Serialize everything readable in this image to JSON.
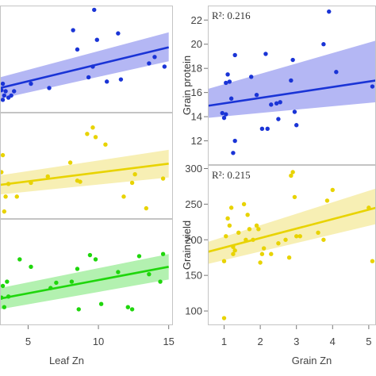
{
  "chart_data": [
    {
      "type": "scatter",
      "panel": "left-top",
      "xlim": [
        3,
        15.3
      ],
      "ylim": [
        0,
        10
      ],
      "grid": false,
      "color": "#1a34d6",
      "band_color": "#a7aaf2",
      "points": [
        [
          3.1,
          2.1
        ],
        [
          3.2,
          2.7
        ],
        [
          3.4,
          2.0
        ],
        [
          3.3,
          1.6
        ],
        [
          3.6,
          1.4
        ],
        [
          3.8,
          1.6
        ],
        [
          3.2,
          1.2
        ],
        [
          4.0,
          2.0
        ],
        [
          5.2,
          2.7
        ],
        [
          6.5,
          2.3
        ],
        [
          8.2,
          7.7
        ],
        [
          8.5,
          5.9
        ],
        [
          9.3,
          3.3
        ],
        [
          9.6,
          4.3
        ],
        [
          9.7,
          9.6
        ],
        [
          9.9,
          6.8
        ],
        [
          10.6,
          2.9
        ],
        [
          11.4,
          7.4
        ],
        [
          11.6,
          3.1
        ],
        [
          13.6,
          4.6
        ],
        [
          14.0,
          5.2
        ],
        [
          14.7,
          4.3
        ]
      ],
      "fit": {
        "x": [
          3,
          15
        ],
        "y": [
          2.3,
          6.1
        ]
      },
      "band": {
        "upper": [
          3.3,
          7.5
        ],
        "lower": [
          1.3,
          4.8
        ]
      }
    },
    {
      "type": "scatter",
      "panel": "left-middle",
      "xlim": [
        3,
        15.3
      ],
      "ylim": [
        0,
        10
      ],
      "grid": false,
      "color": "#e8d300",
      "band_color": "#f6eca7",
      "points": [
        [
          3.1,
          4.4
        ],
        [
          3.2,
          6.0
        ],
        [
          3.4,
          2.1
        ],
        [
          3.3,
          0.7
        ],
        [
          3.6,
          3.3
        ],
        [
          4.2,
          2.1
        ],
        [
          5.2,
          3.4
        ],
        [
          6.4,
          4.0
        ],
        [
          8.0,
          5.3
        ],
        [
          8.5,
          3.6
        ],
        [
          8.7,
          3.5
        ],
        [
          9.2,
          8.0
        ],
        [
          9.6,
          8.6
        ],
        [
          9.8,
          7.7
        ],
        [
          10.5,
          7.0
        ],
        [
          11.8,
          2.1
        ],
        [
          12.4,
          3.4
        ],
        [
          12.6,
          4.2
        ],
        [
          13.4,
          1.0
        ],
        [
          14.6,
          3.8
        ]
      ],
      "fit": {
        "x": [
          3,
          15
        ],
        "y": [
          3.2,
          5.2
        ]
      },
      "band": {
        "upper": [
          4.1,
          6.5
        ],
        "lower": [
          2.3,
          3.9
        ]
      }
    },
    {
      "type": "scatter",
      "panel": "left-bottom",
      "xlim": [
        3,
        15.3
      ],
      "ylim": [
        0,
        10
      ],
      "grid": false,
      "color": "#1fd60c",
      "band_color": "#a6efa2",
      "xticks": [
        5,
        10,
        15
      ],
      "xlabel": "Leaf Zn",
      "points": [
        [
          3.1,
          2.6
        ],
        [
          3.2,
          3.7
        ],
        [
          3.3,
          1.7
        ],
        [
          3.5,
          4.1
        ],
        [
          3.6,
          2.7
        ],
        [
          4.4,
          6.2
        ],
        [
          5.2,
          5.5
        ],
        [
          6.6,
          3.5
        ],
        [
          7.0,
          4.0
        ],
        [
          8.1,
          4.1
        ],
        [
          8.5,
          5.3
        ],
        [
          8.6,
          1.5
        ],
        [
          9.4,
          6.6
        ],
        [
          9.8,
          6.2
        ],
        [
          10.2,
          2.0
        ],
        [
          11.4,
          5.0
        ],
        [
          12.1,
          1.7
        ],
        [
          12.4,
          1.5
        ],
        [
          12.9,
          6.5
        ],
        [
          13.6,
          4.8
        ],
        [
          14.4,
          4.1
        ],
        [
          14.6,
          6.7
        ]
      ],
      "fit": {
        "x": [
          3,
          15
        ],
        "y": [
          2.5,
          5.5
        ]
      },
      "band": {
        "upper": [
          3.5,
          6.7
        ],
        "lower": [
          1.5,
          4.3
        ]
      }
    },
    {
      "type": "scatter",
      "panel": "right-top",
      "xlim": [
        0.55,
        5.2
      ],
      "ylim": [
        10,
        23.2
      ],
      "grid": false,
      "color": "#1a34d6",
      "band_color": "#a7aaf2",
      "ylabel": "Grain protein",
      "yticks": [
        12,
        14,
        16,
        18,
        20,
        22
      ],
      "annotation": "R²: 0.216",
      "points": [
        [
          0.95,
          14.3
        ],
        [
          1.0,
          13.9
        ],
        [
          1.05,
          16.8
        ],
        [
          1.1,
          17.5
        ],
        [
          1.15,
          16.9
        ],
        [
          1.2,
          15.5
        ],
        [
          1.3,
          19.1
        ],
        [
          1.25,
          11.0
        ],
        [
          1.3,
          12.0
        ],
        [
          1.05,
          14.2
        ],
        [
          1.75,
          17.3
        ],
        [
          1.9,
          15.8
        ],
        [
          2.05,
          13.0
        ],
        [
          2.2,
          13.0
        ],
        [
          2.15,
          19.2
        ],
        [
          2.3,
          15.0
        ],
        [
          2.45,
          15.1
        ],
        [
          2.5,
          13.8
        ],
        [
          2.55,
          15.2
        ],
        [
          2.85,
          17.0
        ],
        [
          2.9,
          18.7
        ],
        [
          2.95,
          14.4
        ],
        [
          3.0,
          13.3
        ],
        [
          3.75,
          20.0
        ],
        [
          3.9,
          22.7
        ],
        [
          4.1,
          17.7
        ],
        [
          5.1,
          16.5
        ]
      ],
      "fit": {
        "x": [
          0.55,
          5.2
        ],
        "y": [
          14.9,
          17.0
        ]
      },
      "band": {
        "upper": [
          16.3,
          20.3
        ],
        "lower": [
          13.9,
          15.2
        ]
      }
    },
    {
      "type": "scatter",
      "panel": "right-bottom",
      "xlim": [
        0.55,
        5.2
      ],
      "ylim": [
        80,
        305
      ],
      "grid": false,
      "color": "#e8d300",
      "band_color": "#f6eca7",
      "ylabel": "Grain yield",
      "yticks": [
        100,
        150,
        200,
        250,
        300
      ],
      "xticks": [
        1,
        2,
        3,
        4,
        5
      ],
      "xlabel": "Grain Zn",
      "annotation": "R²: 0.215",
      "points": [
        [
          1.0,
          90
        ],
        [
          1.0,
          170
        ],
        [
          1.05,
          205
        ],
        [
          1.1,
          230
        ],
        [
          1.15,
          220
        ],
        [
          1.2,
          245
        ],
        [
          1.25,
          190
        ],
        [
          1.25,
          180
        ],
        [
          1.3,
          185
        ],
        [
          1.4,
          210
        ],
        [
          1.55,
          250
        ],
        [
          1.6,
          200
        ],
        [
          1.65,
          235
        ],
        [
          1.7,
          215
        ],
        [
          1.8,
          200
        ],
        [
          1.9,
          220
        ],
        [
          1.95,
          215
        ],
        [
          2.0,
          168
        ],
        [
          2.05,
          180
        ],
        [
          2.1,
          188
        ],
        [
          2.3,
          180
        ],
        [
          2.5,
          195
        ],
        [
          2.7,
          200
        ],
        [
          2.8,
          175
        ],
        [
          2.85,
          290
        ],
        [
          2.9,
          295
        ],
        [
          2.95,
          260
        ],
        [
          3.0,
          205
        ],
        [
          3.1,
          205
        ],
        [
          3.6,
          210
        ],
        [
          3.75,
          200
        ],
        [
          3.85,
          255
        ],
        [
          4.0,
          270
        ],
        [
          5.0,
          245
        ],
        [
          5.1,
          170
        ]
      ],
      "fit": {
        "x": [
          0.55,
          5.2
        ],
        "y": [
          183,
          245
        ]
      },
      "band": {
        "upper": [
          197,
          272
        ],
        "lower": [
          166,
          222
        ]
      }
    }
  ]
}
